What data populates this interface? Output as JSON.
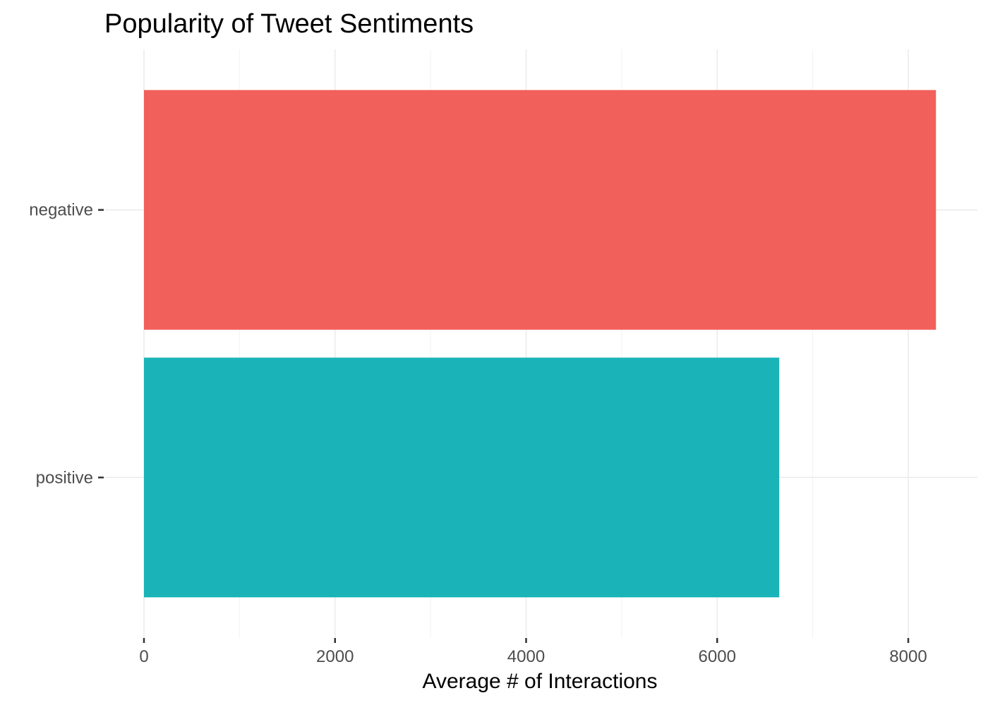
{
  "chart_data": {
    "type": "bar",
    "orientation": "horizontal",
    "title": "Popularity of Tweet Sentiments",
    "xlabel": "Average # of Interactions",
    "ylabel": "",
    "categories": [
      "negative",
      "positive"
    ],
    "values": [
      8290,
      6650
    ],
    "colors": [
      "#F2605B",
      "#1AB4B8"
    ],
    "xlim": [
      0,
      8700
    ],
    "xticks": [
      0,
      2000,
      4000,
      6000,
      8000
    ],
    "grid": true,
    "legend": "none"
  }
}
